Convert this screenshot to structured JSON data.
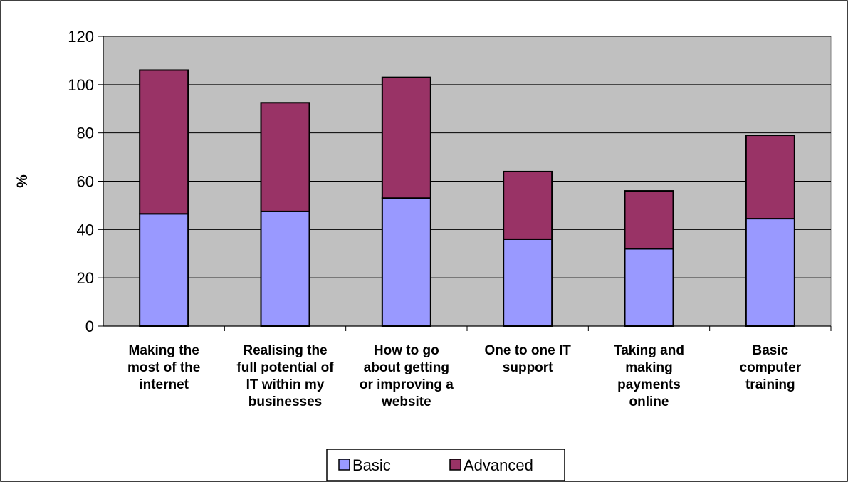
{
  "chart_data": {
    "type": "bar",
    "stacked": true,
    "title": "",
    "xlabel": "",
    "ylabel": "%",
    "ylim": [
      0,
      120
    ],
    "yticks": [
      0,
      20,
      40,
      60,
      80,
      100,
      120
    ],
    "grid": true,
    "legend_position": "bottom",
    "categories": [
      "Making the most of the internet",
      "Realising the full potential of IT within my businesses",
      "How to go about getting or improving a website",
      "One to one IT support",
      "Taking and making payments online",
      "Basic computer training"
    ],
    "category_lines": [
      [
        "Making the",
        "most of the",
        "internet"
      ],
      [
        "Realising the",
        "full potential of",
        "IT within my",
        "businesses"
      ],
      [
        "How to go",
        "about getting",
        "or improving a",
        "website"
      ],
      [
        "One to one IT",
        "support"
      ],
      [
        "Taking and",
        "making",
        "payments",
        "online"
      ],
      [
        "Basic",
        "computer",
        "training"
      ]
    ],
    "series": [
      {
        "name": "Basic",
        "color": "#9999ff",
        "values": [
          46.5,
          47.5,
          53,
          36,
          32,
          44.5
        ]
      },
      {
        "name": "Advanced",
        "color": "#993366",
        "values": [
          59.5,
          45,
          50,
          28,
          24,
          34.5
        ]
      }
    ],
    "plot_background": "#c0c0c0"
  }
}
